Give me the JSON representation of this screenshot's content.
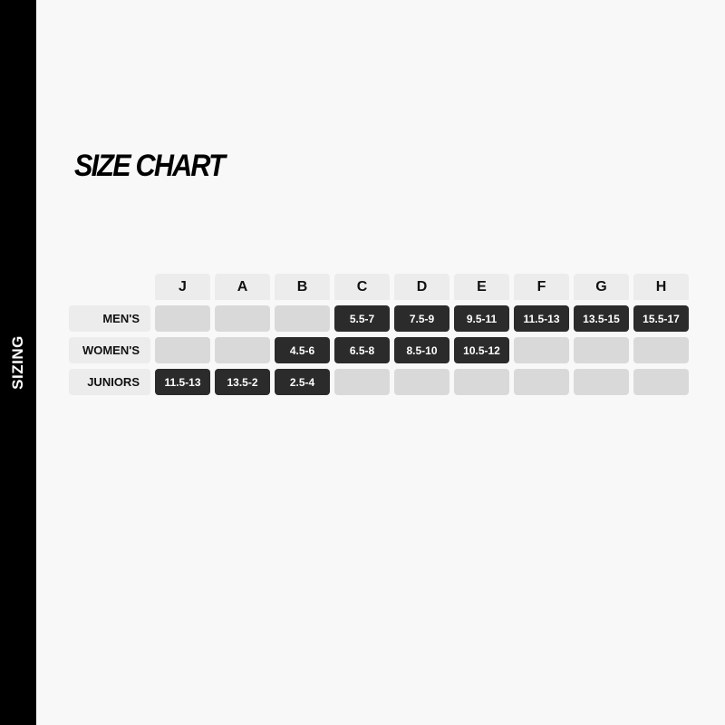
{
  "sidebar": {
    "label": "SIZING"
  },
  "title": "SIZE CHART",
  "colors": {
    "filled": "#2b2b2b",
    "empty": "#d9d9d9",
    "header": "#ececec"
  },
  "columns": [
    "J",
    "A",
    "B",
    "C",
    "D",
    "E",
    "F",
    "G",
    "H"
  ],
  "rows": [
    {
      "label": "MEN'S",
      "cells": [
        "",
        "",
        "",
        "5.5-7",
        "7.5-9",
        "9.5-11",
        "11.5-13",
        "13.5-15",
        "15.5-17"
      ]
    },
    {
      "label": "WOMEN'S",
      "cells": [
        "",
        "",
        "4.5-6",
        "6.5-8",
        "8.5-10",
        "10.5-12",
        "",
        "",
        ""
      ]
    },
    {
      "label": "JUNIORS",
      "cells": [
        "11.5-13",
        "13.5-2",
        "2.5-4",
        "",
        "",
        "",
        "",
        "",
        ""
      ]
    }
  ]
}
